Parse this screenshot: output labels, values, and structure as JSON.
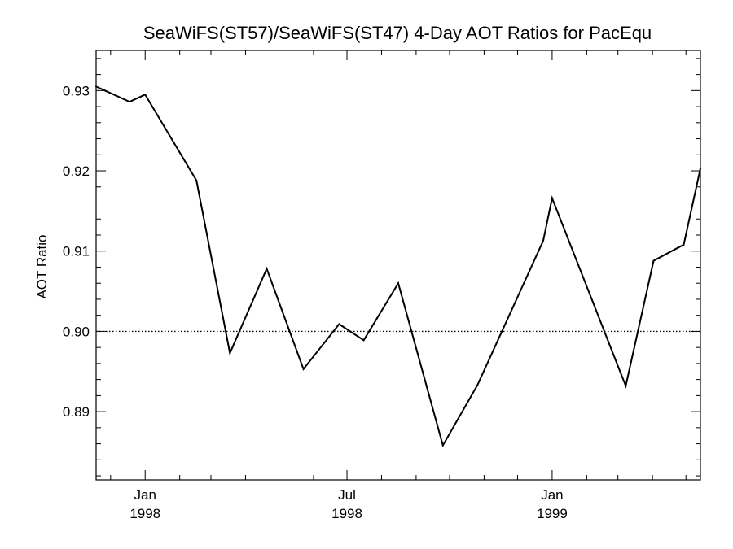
{
  "chart_data": {
    "type": "line",
    "title": "SeaWiFS(ST57)/SeaWiFS(ST47) 4-Day AOT Ratios for PacEqu",
    "xlabel": "",
    "ylabel": "AOT Ratio",
    "ylim": [
      0.8815,
      0.935
    ],
    "xlim": [
      "1997-11-18",
      "1999-05-14"
    ],
    "y_ticks": [
      "0.89",
      "0.90",
      "0.91",
      "0.92",
      "0.93"
    ],
    "x_ticks": [
      {
        "date": "1998-01-01",
        "month": "Jan",
        "year": "1998"
      },
      {
        "date": "1998-07-01",
        "month": "Jul",
        "year": "1998"
      },
      {
        "date": "1999-01-01",
        "month": "Jan",
        "year": "1999"
      }
    ],
    "reference_line": {
      "y": 0.9,
      "style": "dotted"
    },
    "grid": false,
    "series": [
      {
        "points": [
          {
            "x": "1997-11-18",
            "y": 0.9305
          },
          {
            "x": "1997-12-18",
            "y": 0.9286
          },
          {
            "x": "1998-01-01",
            "y": 0.9295
          },
          {
            "x": "1998-02-16",
            "y": 0.9188
          },
          {
            "x": "1998-03-18",
            "y": 0.8973
          },
          {
            "x": "1998-04-20",
            "y": 0.9078
          },
          {
            "x": "1998-05-23",
            "y": 0.8953
          },
          {
            "x": "1998-06-24",
            "y": 0.9009
          },
          {
            "x": "1998-07-16",
            "y": 0.8989
          },
          {
            "x": "1998-08-16",
            "y": 0.906
          },
          {
            "x": "1998-09-25",
            "y": 0.8858
          },
          {
            "x": "1998-10-26",
            "y": 0.8933
          },
          {
            "x": "1998-12-24",
            "y": 0.9113
          },
          {
            "x": "1999-01-01",
            "y": 0.9166
          },
          {
            "x": "1999-03-08",
            "y": 0.8932
          },
          {
            "x": "1999-04-02",
            "y": 0.9088
          },
          {
            "x": "1999-04-29",
            "y": 0.9108
          },
          {
            "x": "1999-05-14",
            "y": 0.9203
          }
        ]
      }
    ]
  }
}
